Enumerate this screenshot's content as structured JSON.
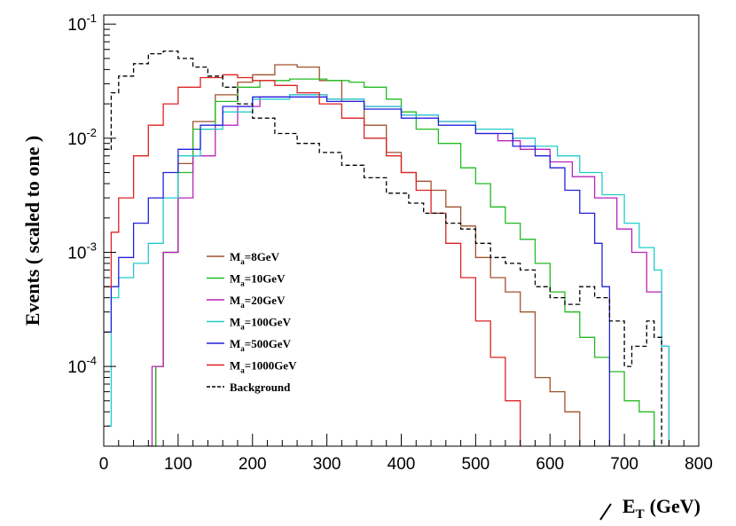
{
  "chart_data": {
    "type": "line",
    "style": "step-histogram",
    "title": "",
    "xlabel_main": "E",
    "xlabel_sub": "T",
    "xlabel_unit": "(GeV)",
    "ylabel": "Events  ( scaled to one )",
    "xlim": [
      0,
      800
    ],
    "ylim": [
      2e-05,
      0.12
    ],
    "yscale": "log",
    "x_ticks": [
      0,
      100,
      200,
      300,
      400,
      500,
      600,
      700,
      800
    ],
    "y_ticks": [
      {
        "value": 0.0001,
        "base": "10",
        "exp": "-4"
      },
      {
        "value": 0.001,
        "base": "10",
        "exp": "-3"
      },
      {
        "value": 0.01,
        "base": "10",
        "exp": "-2"
      },
      {
        "value": 0.1,
        "base": "10",
        "exp": "-1"
      }
    ],
    "legend_position": "left-center",
    "series": [
      {
        "name": "M_a=8GeV",
        "label_main": "M",
        "label_sub": "a",
        "label_rest": "=8GeV",
        "color": "#a0522d",
        "dashed": false,
        "points": [
          [
            60,
            2e-05
          ],
          [
            70,
            0.0001
          ],
          [
            80,
            0.001
          ],
          [
            100,
            0.006
          ],
          [
            120,
            0.014
          ],
          [
            150,
            0.024
          ],
          [
            180,
            0.031
          ],
          [
            200,
            0.036
          ],
          [
            230,
            0.044
          ],
          [
            260,
            0.042
          ],
          [
            290,
            0.032
          ],
          [
            320,
            0.021
          ],
          [
            350,
            0.013
          ],
          [
            380,
            0.0075
          ],
          [
            400,
            0.005
          ],
          [
            420,
            0.0042
          ],
          [
            440,
            0.0035
          ],
          [
            460,
            0.0025
          ],
          [
            480,
            0.0017
          ],
          [
            500,
            0.0009
          ],
          [
            520,
            0.0006
          ],
          [
            540,
            0.00045
          ],
          [
            560,
            0.0003
          ],
          [
            580,
            8e-05
          ],
          [
            600,
            6e-05
          ],
          [
            620,
            4e-05
          ],
          [
            640,
            2e-05
          ]
        ]
      },
      {
        "name": "M_a=10GeV",
        "label_main": "M",
        "label_sub": "a",
        "label_rest": "=10GeV",
        "color": "#22bb22",
        "dashed": false,
        "points": [
          [
            60,
            2e-05
          ],
          [
            70,
            0.0001
          ],
          [
            80,
            0.001
          ],
          [
            100,
            0.005
          ],
          [
            120,
            0.012
          ],
          [
            150,
            0.021
          ],
          [
            180,
            0.028
          ],
          [
            210,
            0.032
          ],
          [
            250,
            0.033
          ],
          [
            300,
            0.032
          ],
          [
            330,
            0.031
          ],
          [
            350,
            0.028
          ],
          [
            380,
            0.022
          ],
          [
            400,
            0.017
          ],
          [
            420,
            0.012
          ],
          [
            450,
            0.009
          ],
          [
            480,
            0.0055
          ],
          [
            500,
            0.004
          ],
          [
            520,
            0.0025
          ],
          [
            540,
            0.0018
          ],
          [
            560,
            0.0013
          ],
          [
            580,
            0.0008
          ],
          [
            600,
            0.00045
          ],
          [
            620,
            0.0003
          ],
          [
            640,
            0.00018
          ],
          [
            660,
            0.00012
          ],
          [
            680,
            9e-05
          ],
          [
            700,
            5e-05
          ],
          [
            720,
            4e-05
          ],
          [
            740,
            2e-05
          ]
        ]
      },
      {
        "name": "M_a=20GeV",
        "label_main": "M",
        "label_sub": "a",
        "label_rest": "=20GeV",
        "color": "#bb22bb",
        "dashed": false,
        "points": [
          [
            55,
            2e-05
          ],
          [
            65,
            0.0001
          ],
          [
            80,
            0.001
          ],
          [
            100,
            0.003
          ],
          [
            120,
            0.007
          ],
          [
            150,
            0.013
          ],
          [
            180,
            0.019
          ],
          [
            210,
            0.023
          ],
          [
            250,
            0.024
          ],
          [
            300,
            0.022
          ],
          [
            350,
            0.019
          ],
          [
            400,
            0.016
          ],
          [
            450,
            0.014
          ],
          [
            500,
            0.011
          ],
          [
            530,
            0.0095
          ],
          [
            560,
            0.008
          ],
          [
            600,
            0.0062
          ],
          [
            630,
            0.0046
          ],
          [
            660,
            0.003
          ],
          [
            690,
            0.0016
          ],
          [
            710,
            0.001
          ],
          [
            730,
            0.00045
          ],
          [
            750,
            0.00015
          ],
          [
            760,
            2e-05
          ]
        ]
      },
      {
        "name": "M_a=100GeV",
        "label_main": "M",
        "label_sub": "a",
        "label_rest": "=100GeV",
        "color": "#22cccc",
        "dashed": false,
        "points": [
          [
            5,
            3e-05
          ],
          [
            10,
            0.0004
          ],
          [
            20,
            0.0006
          ],
          [
            40,
            0.0008
          ],
          [
            60,
            0.0012
          ],
          [
            80,
            0.003
          ],
          [
            100,
            0.007
          ],
          [
            130,
            0.012
          ],
          [
            160,
            0.017
          ],
          [
            200,
            0.022
          ],
          [
            250,
            0.024
          ],
          [
            300,
            0.022
          ],
          [
            350,
            0.019
          ],
          [
            400,
            0.016
          ],
          [
            450,
            0.014
          ],
          [
            500,
            0.012
          ],
          [
            550,
            0.01
          ],
          [
            580,
            0.0085
          ],
          [
            610,
            0.007
          ],
          [
            640,
            0.005
          ],
          [
            670,
            0.0032
          ],
          [
            700,
            0.0018
          ],
          [
            720,
            0.0011
          ],
          [
            740,
            0.0007
          ],
          [
            750,
            0.00015
          ],
          [
            760,
            2e-05
          ]
        ]
      },
      {
        "name": "M_a=500GeV",
        "label_main": "M",
        "label_sub": "a",
        "label_rest": "=500GeV",
        "color": "#2222dd",
        "dashed": false,
        "points": [
          [
            0,
            0.0002
          ],
          [
            10,
            0.0005
          ],
          [
            20,
            0.0009
          ],
          [
            40,
            0.0018
          ],
          [
            60,
            0.003
          ],
          [
            80,
            0.005
          ],
          [
            100,
            0.008
          ],
          [
            130,
            0.013
          ],
          [
            160,
            0.019
          ],
          [
            200,
            0.023
          ],
          [
            250,
            0.023
          ],
          [
            300,
            0.021
          ],
          [
            350,
            0.018
          ],
          [
            400,
            0.015
          ],
          [
            450,
            0.013
          ],
          [
            500,
            0.011
          ],
          [
            550,
            0.0085
          ],
          [
            580,
            0.007
          ],
          [
            600,
            0.0055
          ],
          [
            620,
            0.0035
          ],
          [
            640,
            0.0022
          ],
          [
            660,
            0.0012
          ],
          [
            670,
            0.0005
          ],
          [
            680,
            2e-05
          ]
        ]
      },
      {
        "name": "M_a=1000GeV",
        "label_main": "M",
        "label_sub": "a",
        "label_rest": "=1000GeV",
        "color": "#dd2222",
        "dashed": false,
        "points": [
          [
            0,
            0.0005
          ],
          [
            10,
            0.0015
          ],
          [
            20,
            0.003
          ],
          [
            40,
            0.007
          ],
          [
            60,
            0.013
          ],
          [
            80,
            0.02
          ],
          [
            100,
            0.028
          ],
          [
            130,
            0.034
          ],
          [
            160,
            0.036
          ],
          [
            180,
            0.034
          ],
          [
            200,
            0.032
          ],
          [
            230,
            0.029
          ],
          [
            260,
            0.025
          ],
          [
            290,
            0.02
          ],
          [
            320,
            0.015
          ],
          [
            350,
            0.01
          ],
          [
            380,
            0.007
          ],
          [
            400,
            0.005
          ],
          [
            420,
            0.0035
          ],
          [
            440,
            0.0022
          ],
          [
            460,
            0.0012
          ],
          [
            480,
            0.0006
          ],
          [
            500,
            0.00025
          ],
          [
            520,
            0.00012
          ],
          [
            540,
            5e-05
          ],
          [
            560,
            2e-05
          ]
        ]
      },
      {
        "name": "Background",
        "label_main": "Background",
        "label_sub": "",
        "label_rest": "",
        "color": "#000000",
        "dashed": true,
        "points": [
          [
            0,
            0.008
          ],
          [
            10,
            0.025
          ],
          [
            20,
            0.035
          ],
          [
            40,
            0.045
          ],
          [
            60,
            0.055
          ],
          [
            80,
            0.058
          ],
          [
            100,
            0.05
          ],
          [
            120,
            0.042
          ],
          [
            140,
            0.035
          ],
          [
            160,
            0.028
          ],
          [
            180,
            0.02
          ],
          [
            200,
            0.015
          ],
          [
            230,
            0.011
          ],
          [
            260,
            0.009
          ],
          [
            290,
            0.0075
          ],
          [
            320,
            0.0058
          ],
          [
            350,
            0.0045
          ],
          [
            380,
            0.0033
          ],
          [
            410,
            0.0027
          ],
          [
            430,
            0.0022
          ],
          [
            460,
            0.0018
          ],
          [
            480,
            0.0016
          ],
          [
            500,
            0.0012
          ],
          [
            520,
            0.0009
          ],
          [
            540,
            0.0008
          ],
          [
            560,
            0.0007
          ],
          [
            580,
            0.0005
          ],
          [
            600,
            0.0004
          ],
          [
            620,
            0.00035
          ],
          [
            640,
            0.0005
          ],
          [
            660,
            0.0004
          ],
          [
            680,
            0.00025
          ],
          [
            700,
            0.0001
          ],
          [
            710,
            0.00015
          ],
          [
            730,
            0.00025
          ],
          [
            740,
            0.00018
          ],
          [
            750,
            2e-05
          ]
        ]
      }
    ]
  }
}
